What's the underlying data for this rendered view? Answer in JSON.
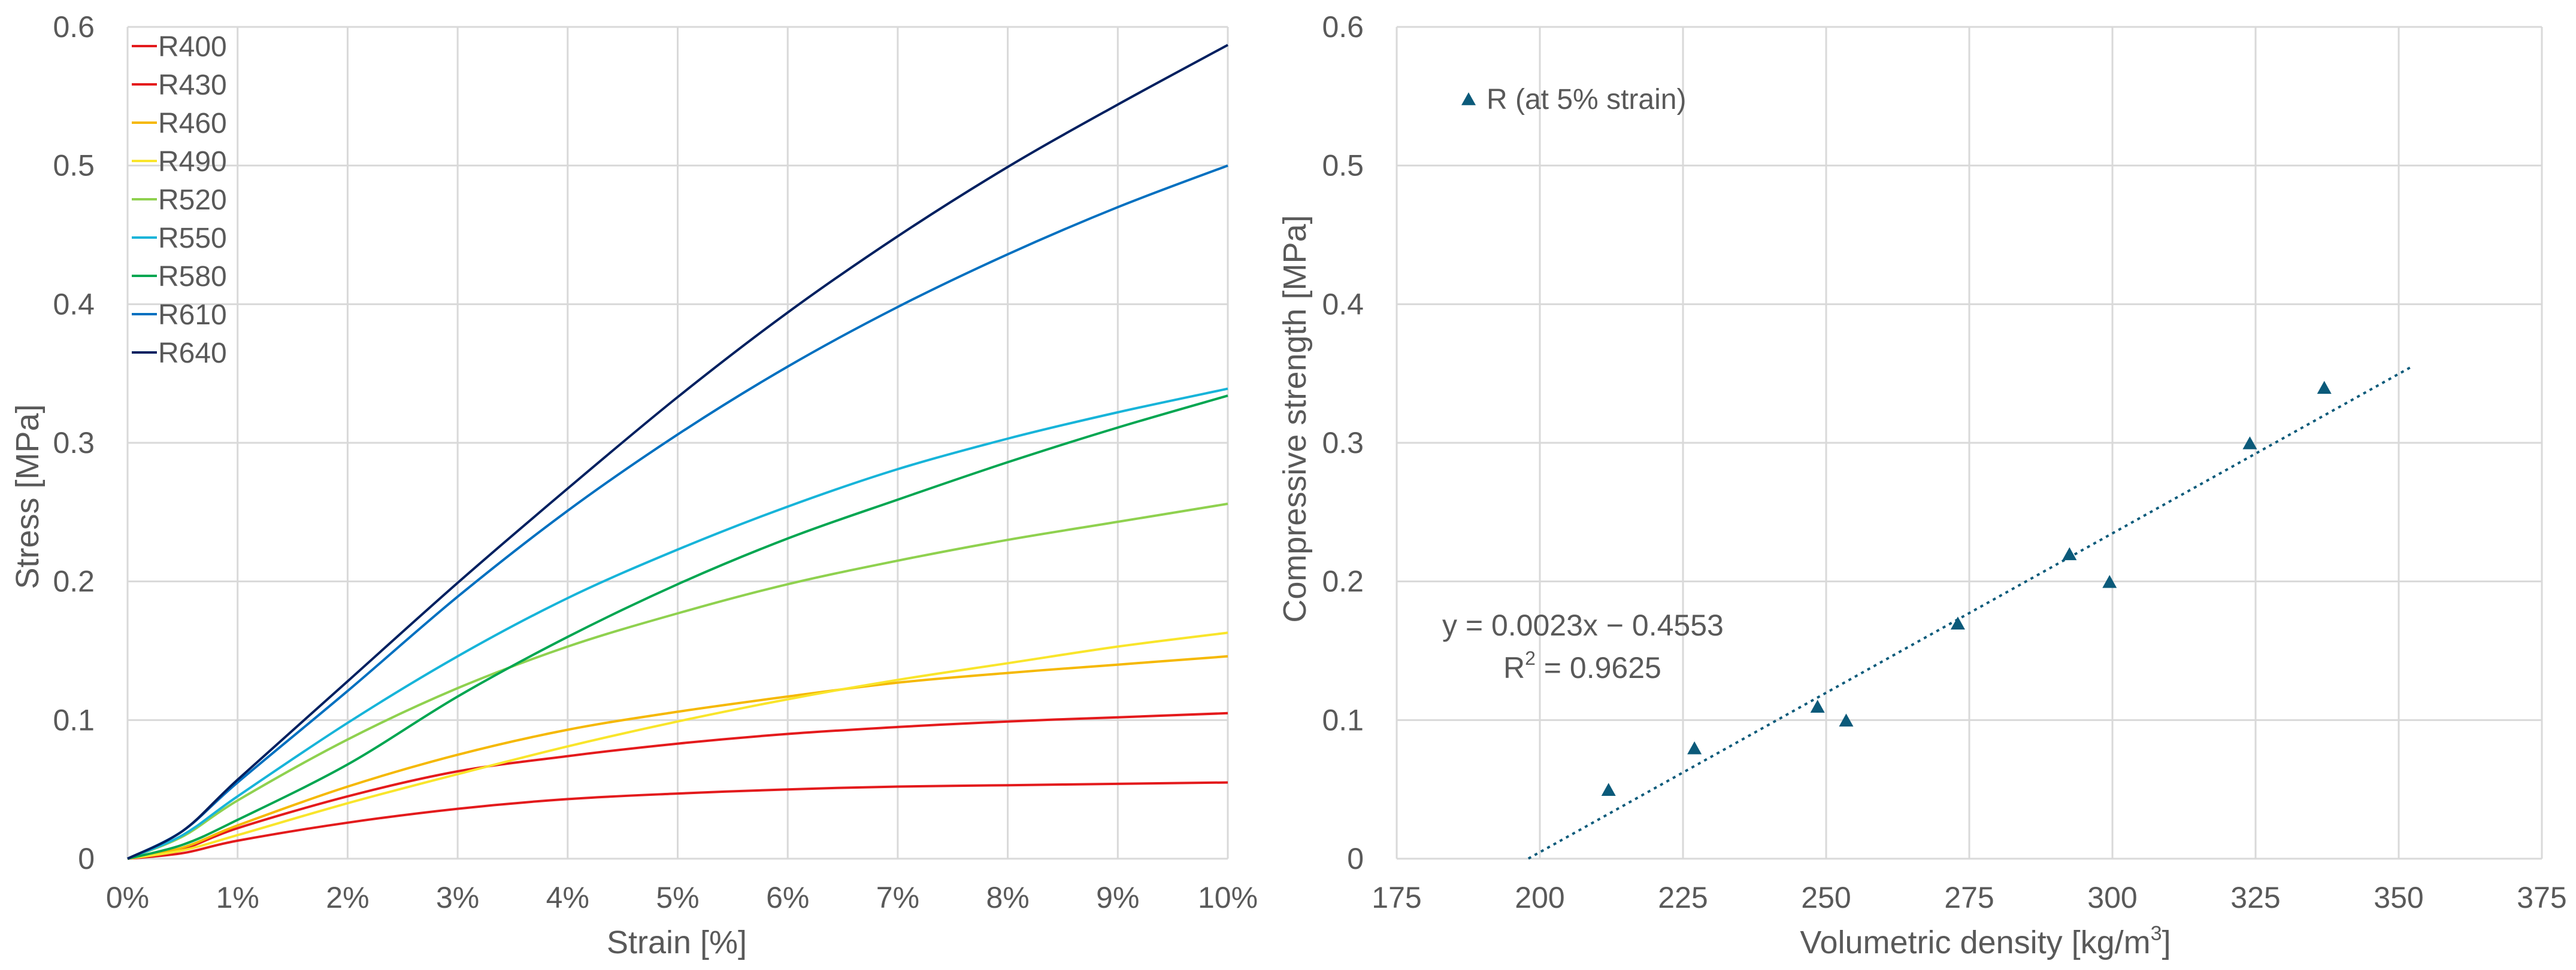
{
  "chart_data": [
    {
      "type": "line",
      "title": "",
      "xlabel": "Strain [%]",
      "ylabel": "Stress [MPa]",
      "xlim": [
        0,
        10
      ],
      "ylim": [
        0,
        0.6
      ],
      "grid": true,
      "legend_position": "top-left",
      "x_ticks": [
        "0%",
        "1%",
        "2%",
        "3%",
        "4%",
        "5%",
        "6%",
        "7%",
        "8%",
        "9%",
        "10%"
      ],
      "y_ticks": [
        "0",
        "0.1",
        "0.2",
        "0.3",
        "0.4",
        "0.5",
        "0.6"
      ],
      "x": [
        0,
        0.5,
        1,
        2,
        3,
        4,
        5,
        6,
        7,
        8,
        9,
        10
      ],
      "series": [
        {
          "name": "R400",
          "color": "#e31a1c",
          "values": [
            0,
            0.004,
            0.013,
            0.026,
            0.036,
            0.043,
            0.047,
            0.05,
            0.052,
            0.053,
            0.054,
            0.055
          ]
        },
        {
          "name": "R430",
          "color": "#e41a1c",
          "values": [
            0,
            0.007,
            0.022,
            0.045,
            0.063,
            0.074,
            0.083,
            0.09,
            0.095,
            0.099,
            0.102,
            0.105
          ]
        },
        {
          "name": "R460",
          "color": "#f5b800",
          "values": [
            0,
            0.008,
            0.024,
            0.052,
            0.075,
            0.093,
            0.106,
            0.117,
            0.127,
            0.134,
            0.14,
            0.146
          ]
        },
        {
          "name": "R490",
          "color": "#f9e52b",
          "values": [
            0,
            0.006,
            0.017,
            0.04,
            0.061,
            0.081,
            0.099,
            0.115,
            0.129,
            0.141,
            0.153,
            0.163
          ]
        },
        {
          "name": "R520",
          "color": "#8fd14f",
          "values": [
            0,
            0.016,
            0.042,
            0.086,
            0.123,
            0.153,
            0.177,
            0.198,
            0.215,
            0.23,
            0.243,
            0.256
          ]
        },
        {
          "name": "R550",
          "color": "#17b4d9",
          "values": [
            0,
            0.017,
            0.045,
            0.098,
            0.146,
            0.188,
            0.223,
            0.254,
            0.281,
            0.303,
            0.322,
            0.339
          ]
        },
        {
          "name": "R580",
          "color": "#00a651",
          "values": [
            0,
            0.01,
            0.028,
            0.068,
            0.117,
            0.16,
            0.198,
            0.231,
            0.259,
            0.286,
            0.311,
            0.334
          ]
        },
        {
          "name": "R610",
          "color": "#0070c0",
          "values": [
            0,
            0.02,
            0.055,
            0.121,
            0.189,
            0.251,
            0.306,
            0.355,
            0.398,
            0.436,
            0.47,
            0.5
          ]
        },
        {
          "name": "R640",
          "color": "#002060",
          "values": [
            0,
            0.02,
            0.057,
            0.128,
            0.199,
            0.267,
            0.333,
            0.394,
            0.449,
            0.499,
            0.544,
            0.587
          ]
        }
      ]
    },
    {
      "type": "scatter",
      "title": "",
      "xlabel": "Volumetric density [kg/m",
      "xlabel_superscript": "3",
      "xlabel_suffix": "]",
      "ylabel": "Compressive strength [MPa]",
      "xlim": [
        175,
        375
      ],
      "ylim": [
        0,
        0.6
      ],
      "grid": true,
      "legend_position": "top-left",
      "x_ticks": [
        "175",
        "200",
        "225",
        "250",
        "275",
        "300",
        "325",
        "350",
        "375"
      ],
      "y_ticks": [
        "0",
        "0.1",
        "0.2",
        "0.3",
        "0.4",
        "0.5",
        "0.6"
      ],
      "series": [
        {
          "name": "R (at 5% strain)",
          "color": "#0b5a7a",
          "marker": "triangle",
          "x": [
            212,
            227,
            248.5,
            253.5,
            273,
            292.5,
            299.5,
            324,
            337
          ],
          "y": [
            0.05,
            0.08,
            0.11,
            0.1,
            0.17,
            0.22,
            0.2,
            0.3,
            0.34
          ]
        }
      ],
      "trendline": {
        "type": "linear",
        "slope": 0.0023,
        "intercept": -0.4553,
        "x_range": [
          198,
          352
        ],
        "style": "dotted",
        "color": "#0b5a7a"
      },
      "equation_label": "y = 0.0023x − 0.4553",
      "r2_label_prefix": "R",
      "r2_label_superscript": "2",
      "r2_label_suffix": " = 0.9625"
    }
  ]
}
